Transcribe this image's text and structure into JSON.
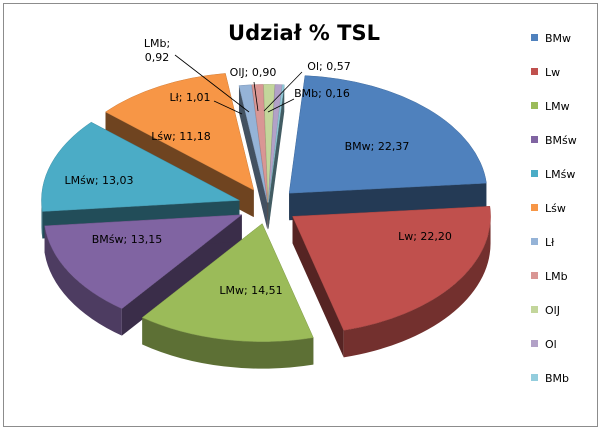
{
  "chart_data": {
    "type": "pie",
    "style": "3d-exploded",
    "title": "Udział % TSL",
    "legend_position": "right",
    "slices": [
      {
        "name": "BMw",
        "value": 22.37,
        "label": "BMw; 22,37",
        "color": "#4F81BD"
      },
      {
        "name": "Lw",
        "value": 22.2,
        "label": "Lw; 22,20",
        "color": "#C0504D"
      },
      {
        "name": "LMw",
        "value": 14.51,
        "label": "LMw; 14,51",
        "color": "#9BBB59"
      },
      {
        "name": "BMśw",
        "value": 13.15,
        "label": "BMśw; 13,15",
        "color": "#8064A2"
      },
      {
        "name": "LMśw",
        "value": 13.03,
        "label": "LMśw; 13,03",
        "color": "#4BACC6"
      },
      {
        "name": "Lśw",
        "value": 11.18,
        "label": "Lśw; 11,18",
        "color": "#F79646"
      },
      {
        "name": "Lł",
        "value": 1.01,
        "label": "Lł; 1,01",
        "color": "#95B3D7"
      },
      {
        "name": "LMb",
        "value": 0.92,
        "label": "LMb;\n0,92",
        "color": "#D99694"
      },
      {
        "name": "OlJ",
        "value": 0.9,
        "label": "OlJ; 0,90",
        "color": "#C3D69B"
      },
      {
        "name": "Ol",
        "value": 0.57,
        "label": "Ol; 0,57",
        "color": "#B2A1C7"
      },
      {
        "name": "BMb",
        "value": 0.16,
        "label": "BMb; 0,16",
        "color": "#93CDDD"
      }
    ]
  }
}
